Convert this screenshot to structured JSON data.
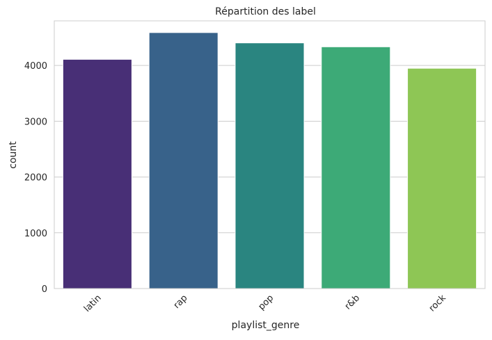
{
  "chart_data": {
    "type": "bar",
    "title": "Répartition des label",
    "xlabel": "playlist_genre",
    "ylabel": "count",
    "categories": [
      "latin",
      "rap",
      "pop",
      "r&b",
      "rock"
    ],
    "values": [
      4110,
      4590,
      4405,
      4335,
      3950
    ],
    "colors": [
      "#482f76",
      "#38628a",
      "#2a8580",
      "#3daa77",
      "#8ec655"
    ],
    "ylim": [
      0,
      4800
    ],
    "yticks": [
      0,
      1000,
      2000,
      3000,
      4000
    ],
    "grid": true,
    "grid_axis": "y",
    "xtick_rotation": 45
  }
}
